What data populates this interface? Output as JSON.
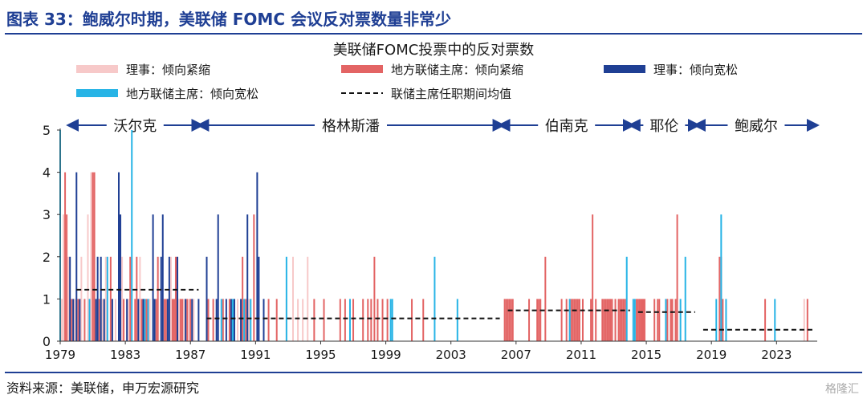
{
  "header": {
    "figure_title": "图表 33：鲍威尔时期，美联储 FOMC 会议反对票数量非常少"
  },
  "footer": {
    "source": "资料来源：美联储，申万宏源研究",
    "watermark": "格隆汇"
  },
  "colors": {
    "brand": "#1f3f94",
    "governor_tight": "#f7c9c9",
    "president_tight": "#e36464",
    "governor_loose": "#1f3f94",
    "president_loose": "#27b4e6",
    "average": "#111111"
  },
  "chart_data": {
    "type": "bar",
    "title": "美联储FOMC投票中的反对票数",
    "ylim": [
      0,
      5
    ],
    "yticks": [
      0,
      1,
      2,
      3,
      4,
      5
    ],
    "xlim": [
      1979,
      2025.5
    ],
    "xticks": [
      1979,
      1983,
      1987,
      1991,
      1995,
      1999,
      2003,
      2007,
      2011,
      2015,
      2019,
      2023
    ],
    "legend": [
      {
        "key": "governor_tight",
        "label": "理事：倾向紧缩",
        "style": "bar"
      },
      {
        "key": "president_tight",
        "label": "地方联储主席：倾向紧缩",
        "style": "bar"
      },
      {
        "key": "governor_loose",
        "label": "理事：倾向宽松",
        "style": "bar"
      },
      {
        "key": "president_loose",
        "label": "地方联储主席：倾向宽松",
        "style": "bar"
      },
      {
        "key": "average",
        "label": "联储主席任职期间均值",
        "style": "dashed"
      }
    ],
    "eras": [
      {
        "name": "沃尔克",
        "start": 1979.6,
        "end": 1987.6,
        "avg": 1.22
      },
      {
        "name": "格林斯潘",
        "start": 1987.6,
        "end": 2006.1,
        "avg": 0.54
      },
      {
        "name": "伯南克",
        "start": 2006.1,
        "end": 2014.1,
        "avg": 0.73
      },
      {
        "name": "耶伦",
        "start": 2014.1,
        "end": 2018.1,
        "avg": 0.69
      },
      {
        "name": "鲍威尔",
        "start": 2018.1,
        "end": 2025.4,
        "avg": 0.27
      }
    ],
    "series": [
      {
        "key": "governor_tight",
        "name": "理事：倾向紧缩",
        "points": [
          [
            1979.1,
            1
          ],
          [
            1979.2,
            3
          ],
          [
            1979.5,
            2
          ],
          [
            1979.9,
            1
          ],
          [
            1980.3,
            2
          ],
          [
            1980.7,
            3
          ],
          [
            1980.9,
            4
          ],
          [
            1981.6,
            1
          ],
          [
            1981.8,
            2
          ],
          [
            1982.4,
            1
          ],
          [
            1982.8,
            2
          ],
          [
            1983.2,
            1
          ],
          [
            1983.9,
            2
          ],
          [
            1984.5,
            1
          ],
          [
            1985.2,
            1
          ],
          [
            1985.8,
            2
          ],
          [
            1986.3,
            1
          ],
          [
            1986.6,
            1
          ],
          [
            1986.9,
            1
          ],
          [
            1987.2,
            1
          ],
          [
            1989.9,
            1
          ],
          [
            1990.6,
            1
          ],
          [
            1992.9,
            1
          ],
          [
            1993.3,
            2
          ],
          [
            1993.6,
            1
          ],
          [
            1993.9,
            1
          ],
          [
            1994.2,
            2
          ],
          [
            2024.7,
            1
          ]
        ]
      },
      {
        "key": "president_tight",
        "name": "地方联储主席：倾向紧缩",
        "points": [
          [
            1979.3,
            4
          ],
          [
            1979.4,
            3
          ],
          [
            1979.7,
            1
          ],
          [
            1980.1,
            1
          ],
          [
            1980.5,
            1
          ],
          [
            1981.0,
            4
          ],
          [
            1981.1,
            4
          ],
          [
            1981.4,
            1
          ],
          [
            1982.1,
            2
          ],
          [
            1982.9,
            1
          ],
          [
            1983.3,
            2
          ],
          [
            1983.6,
            1
          ],
          [
            1983.7,
            2
          ],
          [
            1984.0,
            1
          ],
          [
            1984.3,
            1
          ],
          [
            1984.9,
            1
          ],
          [
            1985.0,
            2
          ],
          [
            1985.4,
            1
          ],
          [
            1985.5,
            1
          ],
          [
            1985.9,
            1
          ],
          [
            1986.0,
            1
          ],
          [
            1986.1,
            2
          ],
          [
            1986.4,
            1
          ],
          [
            1986.5,
            1
          ],
          [
            1986.8,
            1
          ],
          [
            1987.0,
            1
          ],
          [
            1988.1,
            1
          ],
          [
            1988.4,
            1
          ],
          [
            1989.0,
            1
          ],
          [
            1989.4,
            1
          ],
          [
            1990.2,
            2
          ],
          [
            1990.4,
            1
          ],
          [
            1990.9,
            3
          ],
          [
            1991.8,
            1
          ],
          [
            1992.3,
            1
          ],
          [
            1994.6,
            1
          ],
          [
            1995.2,
            1
          ],
          [
            1996.2,
            1
          ],
          [
            1996.5,
            1
          ],
          [
            1997.0,
            1
          ],
          [
            1997.6,
            1
          ],
          [
            1997.9,
            1
          ],
          [
            1998.1,
            1
          ],
          [
            1998.3,
            2
          ],
          [
            1998.5,
            1
          ],
          [
            1998.8,
            1
          ],
          [
            1999.1,
            1
          ],
          [
            2000.6,
            1
          ],
          [
            2001.3,
            1
          ],
          [
            2006.3,
            1
          ],
          [
            2006.4,
            1
          ],
          [
            2006.5,
            1
          ],
          [
            2006.6,
            1
          ],
          [
            2006.7,
            1
          ],
          [
            2006.8,
            1
          ],
          [
            2007.8,
            1
          ],
          [
            2008.3,
            1
          ],
          [
            2008.4,
            1
          ],
          [
            2008.5,
            1
          ],
          [
            2008.8,
            2
          ],
          [
            2009.8,
            1
          ],
          [
            2010.1,
            1
          ],
          [
            2010.3,
            1
          ],
          [
            2010.4,
            1
          ],
          [
            2010.5,
            1
          ],
          [
            2010.6,
            1
          ],
          [
            2010.7,
            1
          ],
          [
            2010.8,
            1
          ],
          [
            2010.9,
            1
          ],
          [
            2011.1,
            1
          ],
          [
            2011.6,
            1
          ],
          [
            2011.7,
            3
          ],
          [
            2011.9,
            1
          ],
          [
            2012.3,
            1
          ],
          [
            2012.4,
            1
          ],
          [
            2012.5,
            1
          ],
          [
            2012.6,
            1
          ],
          [
            2012.7,
            1
          ],
          [
            2012.8,
            1
          ],
          [
            2012.9,
            1
          ],
          [
            2013.1,
            1
          ],
          [
            2013.3,
            1
          ],
          [
            2013.4,
            1
          ],
          [
            2013.5,
            1
          ],
          [
            2013.6,
            1
          ],
          [
            2013.7,
            1
          ],
          [
            2014.4,
            1
          ],
          [
            2014.5,
            1
          ],
          [
            2014.6,
            1
          ],
          [
            2014.7,
            1
          ],
          [
            2014.8,
            1
          ],
          [
            2014.9,
            1
          ],
          [
            2015.5,
            1
          ],
          [
            2015.7,
            1
          ],
          [
            2015.8,
            1
          ],
          [
            2016.3,
            1
          ],
          [
            2016.5,
            1
          ],
          [
            2016.6,
            1
          ],
          [
            2016.8,
            1
          ],
          [
            2016.9,
            3
          ],
          [
            2019.5,
            2
          ],
          [
            2019.6,
            2
          ],
          [
            2019.7,
            1
          ],
          [
            2022.3,
            1
          ],
          [
            2024.9,
            1
          ]
        ]
      },
      {
        "key": "governor_loose",
        "name": "理事：倾向宽松",
        "points": [
          [
            1979.6,
            2
          ],
          [
            1979.8,
            1
          ],
          [
            1980.0,
            4
          ],
          [
            1980.2,
            1
          ],
          [
            1981.2,
            1
          ],
          [
            1981.3,
            2
          ],
          [
            1981.5,
            2
          ],
          [
            1981.7,
            1
          ],
          [
            1982.2,
            1
          ],
          [
            1982.6,
            4
          ],
          [
            1982.7,
            3
          ],
          [
            1983.1,
            1
          ],
          [
            1983.8,
            1
          ],
          [
            1984.1,
            1
          ],
          [
            1984.7,
            3
          ],
          [
            1984.8,
            1
          ],
          [
            1985.2,
            2
          ],
          [
            1985.3,
            3
          ],
          [
            1985.6,
            1
          ],
          [
            1985.7,
            2
          ],
          [
            1986.2,
            2
          ],
          [
            1986.7,
            1
          ],
          [
            1987.1,
            1
          ],
          [
            1987.5,
            1
          ],
          [
            1988.0,
            2
          ],
          [
            1988.6,
            1
          ],
          [
            1988.7,
            3
          ],
          [
            1989.2,
            1
          ],
          [
            1989.5,
            1
          ],
          [
            1989.7,
            1
          ],
          [
            1990.1,
            1
          ],
          [
            1990.5,
            3
          ],
          [
            1991.1,
            4
          ],
          [
            1991.2,
            2
          ],
          [
            1991.5,
            1
          ]
        ]
      },
      {
        "key": "president_loose",
        "name": "地方联储主席：倾向宽松",
        "points": [
          [
            1979.0,
            5
          ],
          [
            1980.8,
            1
          ],
          [
            1981.9,
            2
          ],
          [
            1983.4,
            5
          ],
          [
            1984.2,
            1
          ],
          [
            1984.4,
            1
          ],
          [
            1988.9,
            1
          ],
          [
            1989.6,
            1
          ],
          [
            1990.3,
            1
          ],
          [
            1990.7,
            1
          ],
          [
            1992.9,
            2
          ],
          [
            1996.8,
            1
          ],
          [
            1999.3,
            1
          ],
          [
            1999.4,
            1
          ],
          [
            2002.0,
            2
          ],
          [
            2003.4,
            1
          ],
          [
            2010.3,
            1
          ],
          [
            2013.8,
            2
          ],
          [
            2014.2,
            1
          ],
          [
            2014.3,
            1
          ],
          [
            2016.2,
            1
          ],
          [
            2017.1,
            1
          ],
          [
            2017.4,
            2
          ],
          [
            2019.3,
            1
          ],
          [
            2019.6,
            3
          ],
          [
            2019.9,
            1
          ],
          [
            2022.9,
            1
          ]
        ]
      }
    ]
  }
}
